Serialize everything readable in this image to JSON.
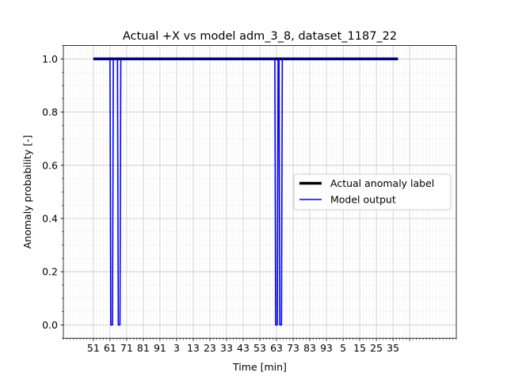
{
  "chart_data": {
    "type": "line",
    "title": "Actual +X vs model adm_3_8, dataset_1187_22",
    "xlabel": "Time [min]",
    "ylabel": "Anomaly probability [-]",
    "xlim": [
      -1.8,
      21.8
    ],
    "ylim": [
      -0.05,
      1.05
    ],
    "x_tick_positions": [
      0,
      1,
      2,
      3,
      4,
      5,
      6,
      7,
      8,
      9,
      10,
      11,
      12,
      13,
      14,
      15,
      16,
      17,
      18,
      19
    ],
    "x_tick_labels": [
      "51",
      "61",
      "71",
      "81",
      "91",
      "3",
      "13",
      "23",
      "33",
      "43",
      "53",
      "63",
      "73",
      "83",
      "93",
      "5",
      "15",
      "25",
      "35",
      ""
    ],
    "y_ticks": [
      0.0,
      0.2,
      0.4,
      0.6,
      0.8,
      1.0
    ],
    "y_tick_labels": [
      "0.0",
      "0.2",
      "0.4",
      "0.6",
      "0.8",
      "1.0"
    ],
    "grid": true,
    "legend_position": "center-right",
    "series": [
      {
        "name": "Actual anomaly label",
        "color": "#000000",
        "x": [
          0,
          18.3
        ],
        "values": [
          1,
          1
        ]
      },
      {
        "name": "Model output",
        "color": "#0000ff",
        "x": [
          0,
          1.0,
          1.05,
          1.15,
          1.2,
          1.45,
          1.5,
          1.6,
          1.65,
          10.9,
          10.95,
          11.05,
          11.1,
          11.15,
          11.2,
          11.3,
          11.35,
          18.3
        ],
        "values": [
          1,
          1,
          0,
          0,
          1,
          1,
          0,
          0,
          1,
          1,
          0,
          0,
          1,
          1,
          0,
          0,
          1,
          1
        ]
      }
    ]
  }
}
